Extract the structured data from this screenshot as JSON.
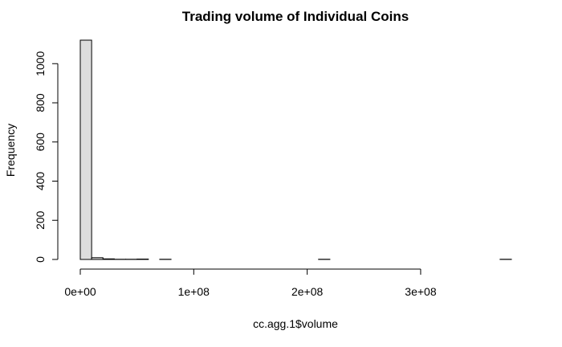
{
  "chart_data": {
    "type": "histogram",
    "title": "Trading volume of Individual Coins",
    "xlabel": "cc.agg.1$volume",
    "ylabel": "Frequency",
    "bin_width": 10000000,
    "bin_start": 0,
    "x_ticks": [
      {
        "value": 0,
        "label": "0e+00"
      },
      {
        "value": 100000000,
        "label": "1e+08"
      },
      {
        "value": 200000000,
        "label": "2e+08"
      },
      {
        "value": 300000000,
        "label": "3e+08"
      }
    ],
    "y_ticks": [
      {
        "value": 0,
        "label": "0"
      },
      {
        "value": 200,
        "label": "200"
      },
      {
        "value": 400,
        "label": "400"
      },
      {
        "value": 600,
        "label": "600"
      },
      {
        "value": 800,
        "label": "800"
      },
      {
        "value": 1000,
        "label": "1000"
      }
    ],
    "xlim": [
      0,
      380000000
    ],
    "ylim": [
      0,
      1120
    ],
    "counts": [
      1120,
      9,
      3,
      1,
      1,
      2,
      0,
      1,
      0,
      0,
      0,
      0,
      0,
      0,
      0,
      0,
      0,
      0,
      0,
      0,
      0,
      1,
      0,
      0,
      0,
      0,
      0,
      0,
      0,
      0,
      0,
      0,
      0,
      0,
      0,
      0,
      0,
      1
    ],
    "bar_fill": "#dddddd",
    "bar_stroke": "#000000"
  }
}
